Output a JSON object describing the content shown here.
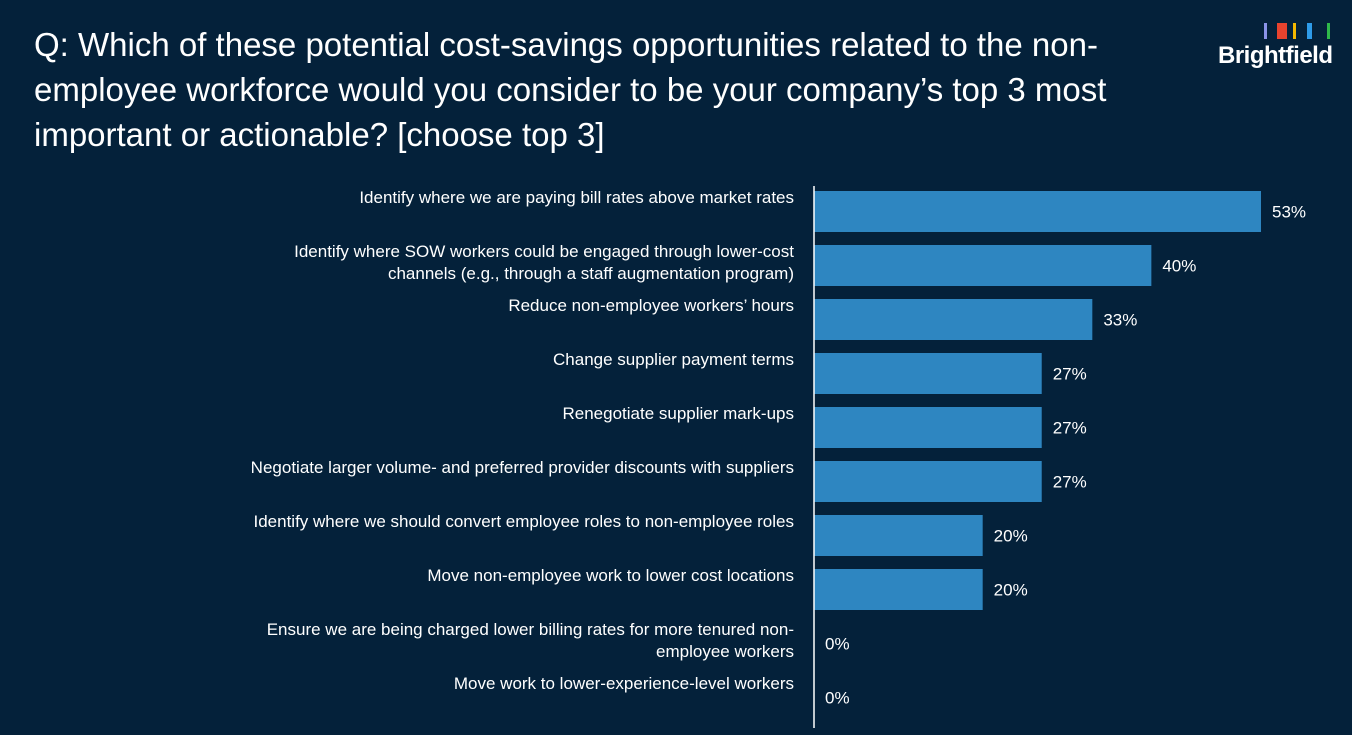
{
  "slide": {
    "title": "Q: Which of these potential cost-savings opportunities related to the non-employee workforce would you consider to be your company’s top 3 most important or actionable? [choose top 3]"
  },
  "logo": {
    "text": "Brightfield",
    "bar_colors": [
      "#8a93e8",
      "#e8432e",
      "#f5b800",
      "#2e9be8",
      "#2fb84a"
    ]
  },
  "colors": {
    "background": "#04213a",
    "bar": "#2e86c1",
    "axis": "#ffffff",
    "text": "#ffffff"
  },
  "chart_data": {
    "type": "bar",
    "orientation": "horizontal",
    "categories": [
      "Identify where we are paying bill rates above market rates",
      "Identify where SOW workers could be engaged through lower-cost channels (e.g., through a staff augmentation program)",
      "Reduce non-employee workers’ hours",
      "Change supplier payment terms",
      "Renegotiate supplier mark-ups",
      "Negotiate larger volume- and preferred provider discounts with suppliers",
      "Identify where we should convert employee roles to non-employee roles",
      "Move non-employee work to lower cost locations",
      "Ensure we are being charged lower billing rates for more tenured non-employee workers",
      "Move work to lower-experience-level workers"
    ],
    "category_lines": [
      [
        "Identify where we are paying bill rates above market rates"
      ],
      [
        "Identify where SOW workers could be engaged through lower-cost",
        "channels (e.g., through a staff augmentation program)"
      ],
      [
        "Reduce non-employee workers’ hours"
      ],
      [
        "Change supplier payment terms"
      ],
      [
        "Renegotiate supplier mark-ups"
      ],
      [
        "Negotiate larger volume- and preferred provider discounts with suppliers"
      ],
      [
        "Identify where we should convert employee roles to non-employee roles"
      ],
      [
        "Move non-employee work to lower cost locations"
      ],
      [
        "Ensure we are being charged lower billing rates for more tenured non-",
        "employee workers"
      ],
      [
        "Move work to lower-experience-level workers"
      ]
    ],
    "values": [
      53,
      40,
      33,
      27,
      27,
      27,
      20,
      20,
      0,
      0
    ],
    "value_labels": [
      "53%",
      "40%",
      "33%",
      "27%",
      "27%",
      "27%",
      "20%",
      "20%",
      "0%",
      "0%"
    ],
    "unit": "%",
    "xlim": [
      0,
      60
    ],
    "grid": false,
    "legend": "none"
  }
}
